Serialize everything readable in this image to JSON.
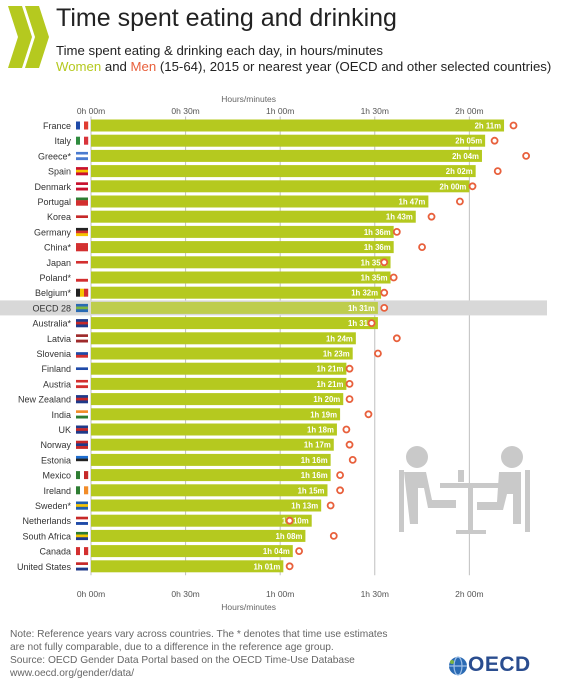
{
  "header": {
    "title": "Time spent eating and drinking",
    "subtitle": "Time spent eating & drinking each day, in hours/minutes",
    "women_label": "Women",
    "and_label": " and ",
    "men_label": "Men",
    "subtitle2_rest": " (15-64), 2015 or nearest year (OECD and other selected countries)"
  },
  "colors": {
    "women": "#b5c91f",
    "men": "#e8603c",
    "highlight_row": "#d8d8d8"
  },
  "chart_data": {
    "type": "bar",
    "orientation": "horizontal",
    "axis_label_top": "Hours/minutes",
    "axis_label_bottom": "Hours/minutes",
    "x_ticks": [
      "0h 00m",
      "0h 30m",
      "1h 00m",
      "1h 30m",
      "2h 00m"
    ],
    "x_tick_values": [
      0,
      30,
      60,
      90,
      120
    ],
    "xlim": [
      0,
      140
    ],
    "unit": "minutes",
    "highlight": "OECD 28",
    "categories": [
      "France",
      "Italy",
      "Greece*",
      "Spain",
      "Denmark",
      "Portugal",
      "Korea",
      "Germany",
      "China*",
      "Japan",
      "Poland*",
      "Belgium*",
      "OECD 28",
      "Australia*",
      "Latvia",
      "Slovenia",
      "Finland",
      "Austria",
      "New Zealand",
      "India",
      "UK",
      "Norway",
      "Estonia",
      "Mexico",
      "Ireland",
      "Sweden*",
      "Netherlands",
      "South Africa",
      "Canada",
      "United States"
    ],
    "flags": [
      "fr",
      "it",
      "gr",
      "es",
      "dk",
      "pt",
      "kr",
      "de",
      "cn",
      "jp",
      "pl",
      "be",
      "oecd",
      "au",
      "lv",
      "si",
      "fi",
      "at",
      "nz",
      "in",
      "uk",
      "no",
      "ee",
      "mx",
      "ie",
      "se",
      "nl",
      "za",
      "ca",
      "us"
    ],
    "series": [
      {
        "name": "Women",
        "values": [
          131,
          125,
          124,
          122,
          120,
          107,
          103,
          96,
          96,
          95,
          95,
          92,
          91,
          91,
          84,
          83,
          81,
          81,
          80,
          79,
          78,
          77,
          76,
          76,
          75,
          73,
          70,
          68,
          64,
          61
        ],
        "labels": [
          "2h 11m",
          "2h 05m",
          "2h 04m",
          "2h 02m",
          "2h 00m",
          "1h 47m",
          "1h 43m",
          "1h 36m",
          "1h 36m",
          "1h 35m",
          "1h 35m",
          "1h 32m",
          "1h 31m",
          "1h 31m",
          "1h 24m",
          "1h 23m",
          "1h 21m",
          "1h 21m",
          "1h 20m",
          "1h 19m",
          "1h 18m",
          "1h 17m",
          "1h 16m",
          "1h 16m",
          "1h 15m",
          "1h 13m",
          "1h 10m",
          "1h 08m",
          "1h 04m",
          "1h 01m"
        ]
      },
      {
        "name": "Men",
        "values": [
          134,
          128,
          138,
          129,
          121,
          117,
          108,
          97,
          105,
          93,
          96,
          93,
          93,
          89,
          97,
          91,
          82,
          82,
          82,
          88,
          81,
          82,
          83,
          79,
          79,
          76,
          63,
          77,
          66,
          63
        ]
      }
    ]
  },
  "footer": {
    "note1": "Note: Reference years vary across countries. The * denotes that time use estimates",
    "note2": "are not fully comparable, due to a difference in the reference age group.",
    "source": "Source: OECD Gender Data Portal based on the OECD Time-Use Database",
    "url": "www.oecd.org/gender/data/",
    "org": "OECD"
  }
}
